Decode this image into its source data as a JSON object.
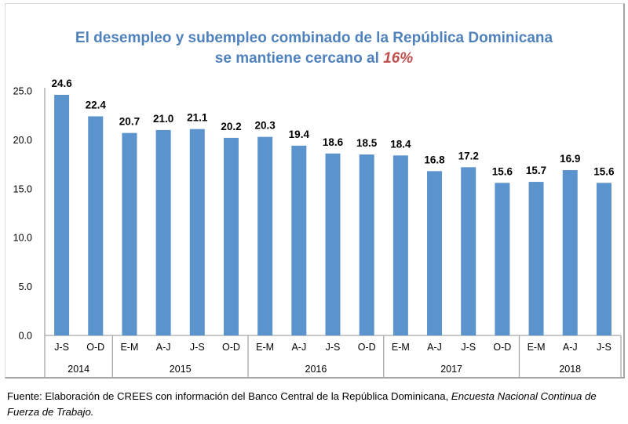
{
  "chart_data": {
    "type": "bar",
    "title_line1": "El desempleo y subempleo combinado de la República Dominicana",
    "title_line2_prefix": "se mantiene cercano al ",
    "title_highlight": "16%",
    "xlabel": "",
    "ylabel": "",
    "ylim": [
      0,
      25
    ],
    "yticks": [
      "0.0",
      "5.0",
      "10.0",
      "15.0",
      "20.0",
      "25.0"
    ],
    "ytick_values": [
      0,
      5,
      10,
      15,
      20,
      25
    ],
    "grid": false,
    "legend": "none",
    "categories": [
      "J-S",
      "O-D",
      "E-M",
      "A-J",
      "J-S",
      "O-D",
      "E-M",
      "A-J",
      "J-S",
      "O-D",
      "E-M",
      "A-J",
      "J-S",
      "O-D",
      "E-M",
      "A-J",
      "J-S"
    ],
    "groups": [
      {
        "label": "2014",
        "count": 2
      },
      {
        "label": "2015",
        "count": 4
      },
      {
        "label": "2016",
        "count": 4
      },
      {
        "label": "2017",
        "count": 4
      },
      {
        "label": "2018",
        "count": 3
      }
    ],
    "series": [
      {
        "name": "Desempleo y subempleo combinado",
        "color": "#5b93cd",
        "values": [
          24.6,
          22.4,
          20.7,
          21.0,
          21.1,
          20.2,
          20.3,
          19.4,
          18.6,
          18.5,
          18.4,
          16.8,
          17.2,
          15.6,
          15.7,
          16.9,
          15.6
        ],
        "labels": [
          "24.6",
          "22.4",
          "20.7",
          "21.0",
          "21.1",
          "20.2",
          "20.3",
          "19.4",
          "18.6",
          "18.5",
          "18.4",
          "16.8",
          "17.2",
          "15.6",
          "15.7",
          "16.9",
          "15.6"
        ]
      }
    ]
  },
  "footer": {
    "text": "Fuente: Elaboración de CREES con información del Banco Central de la República Dominicana, ",
    "italic": "Encuesta Nacional Continua de Fuerza de Trabajo."
  },
  "colors": {
    "title": "#4f81bd",
    "highlight": "#c0504d",
    "bar": "#5b93cd",
    "axis": "#a6a6a6"
  }
}
